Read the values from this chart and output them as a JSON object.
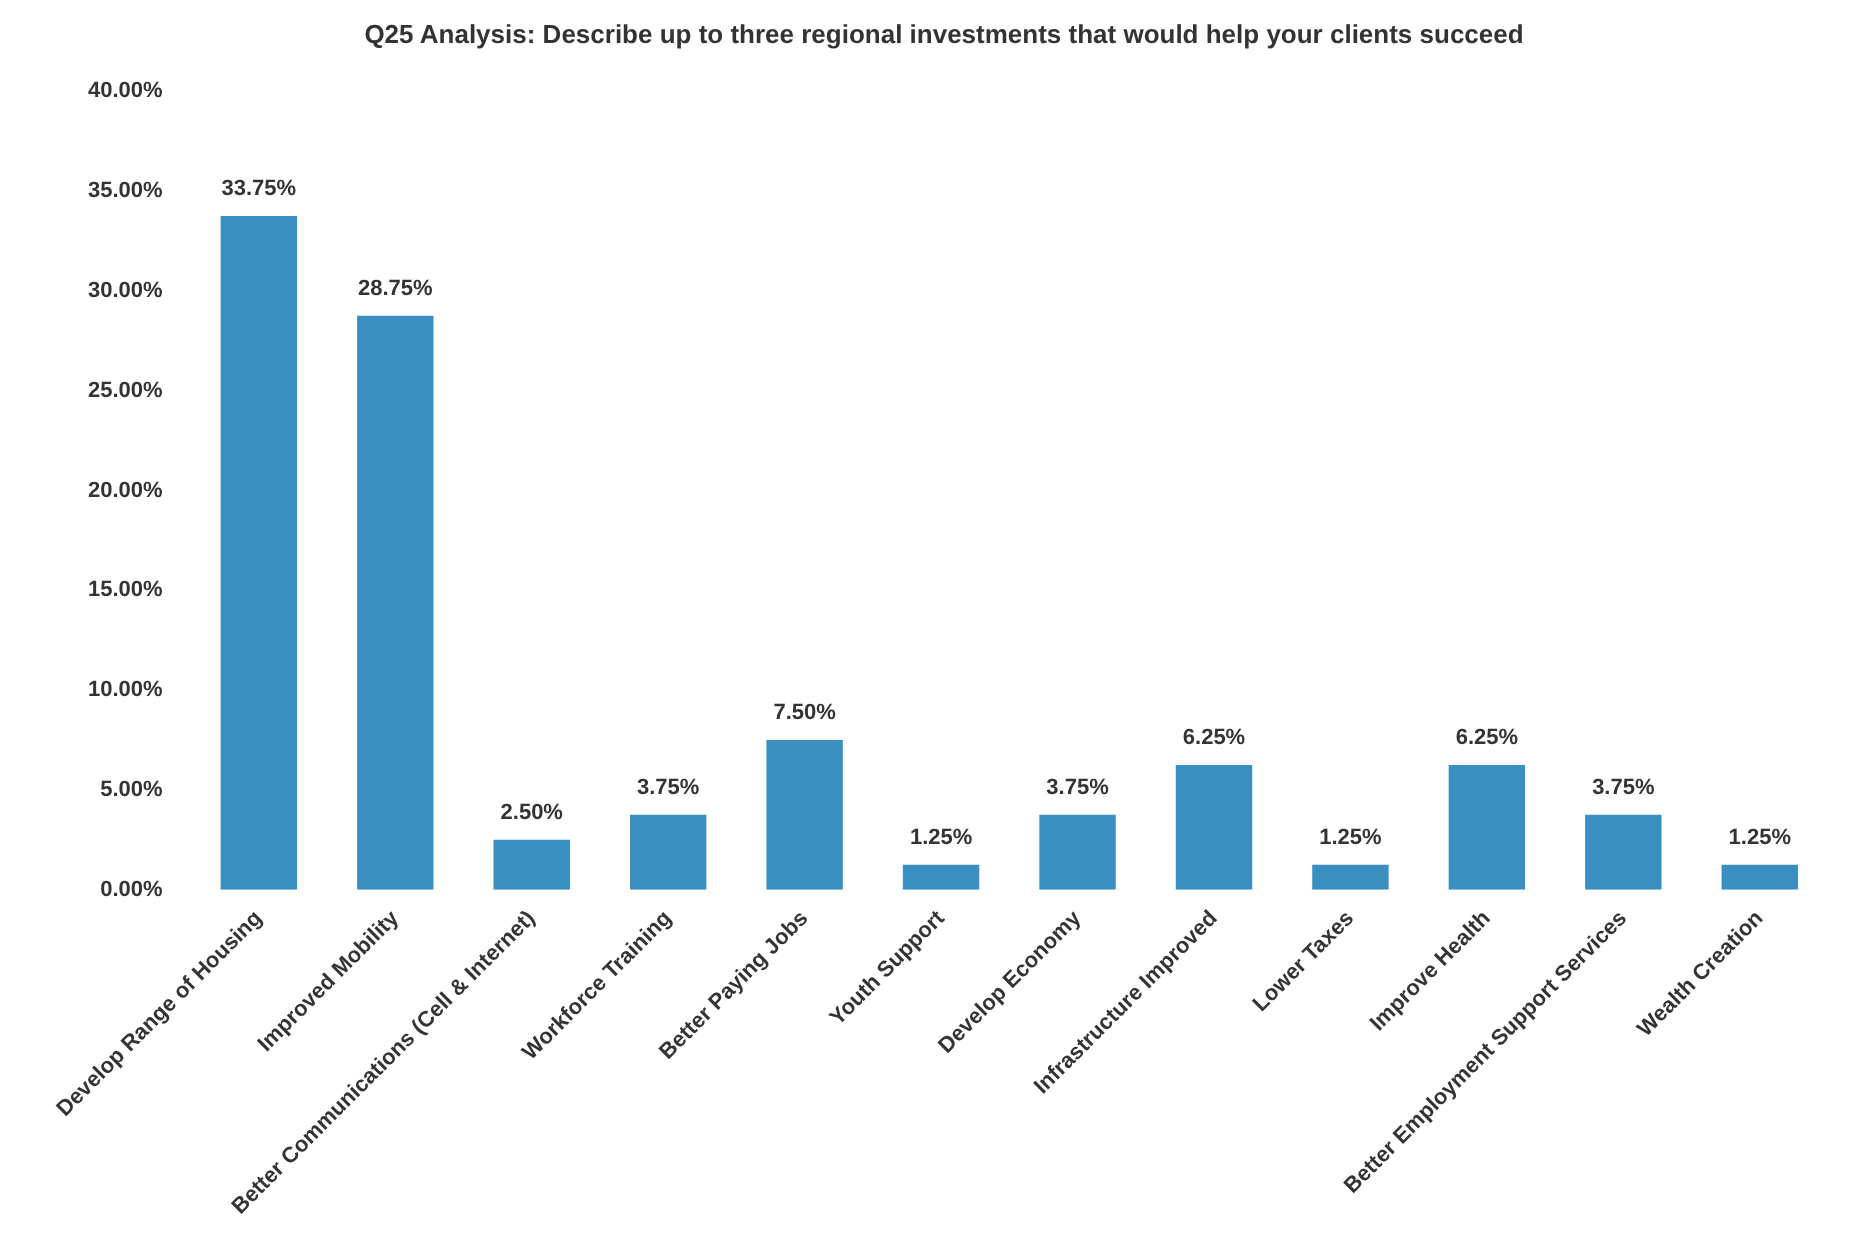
{
  "chart_data": {
    "type": "bar",
    "title": "Q25 Analysis: Describe up to three regional investments that would help your clients succeed",
    "categories": [
      "Develop Range of Housing",
      "Improved Mobility",
      "Better Communications (Cell & Internet)",
      "Workforce Training",
      "Better Paying Jobs",
      "Youth Support",
      "Develop Economy",
      "Infrastructure Improved",
      "Lower Taxes",
      "Improve Health",
      "Better Employment Support Services",
      "Wealth Creation"
    ],
    "values": [
      33.75,
      28.75,
      2.5,
      3.75,
      7.5,
      1.25,
      3.75,
      6.25,
      1.25,
      6.25,
      3.75,
      1.25
    ],
    "value_labels": [
      "33.75%",
      "28.75%",
      "2.50%",
      "3.75%",
      "7.50%",
      "1.25%",
      "3.75%",
      "6.25%",
      "1.25%",
      "6.25%",
      "3.75%",
      "1.25%"
    ],
    "color": "#3a8fc0",
    "ylim": [
      0,
      40
    ],
    "yticks": [
      {
        "value": 0,
        "label": "0.00%"
      },
      {
        "value": 5,
        "label": "5.00%"
      },
      {
        "value": 10,
        "label": "10.00%"
      },
      {
        "value": 15,
        "label": "15.00%"
      },
      {
        "value": 20,
        "label": "20.00%"
      },
      {
        "value": 25,
        "label": "25.00%"
      },
      {
        "value": 30,
        "label": "30.00%"
      },
      {
        "value": 35,
        "label": "35.00%"
      },
      {
        "value": 40,
        "label": "40.00%"
      }
    ],
    "grid": false,
    "legend": false
  }
}
